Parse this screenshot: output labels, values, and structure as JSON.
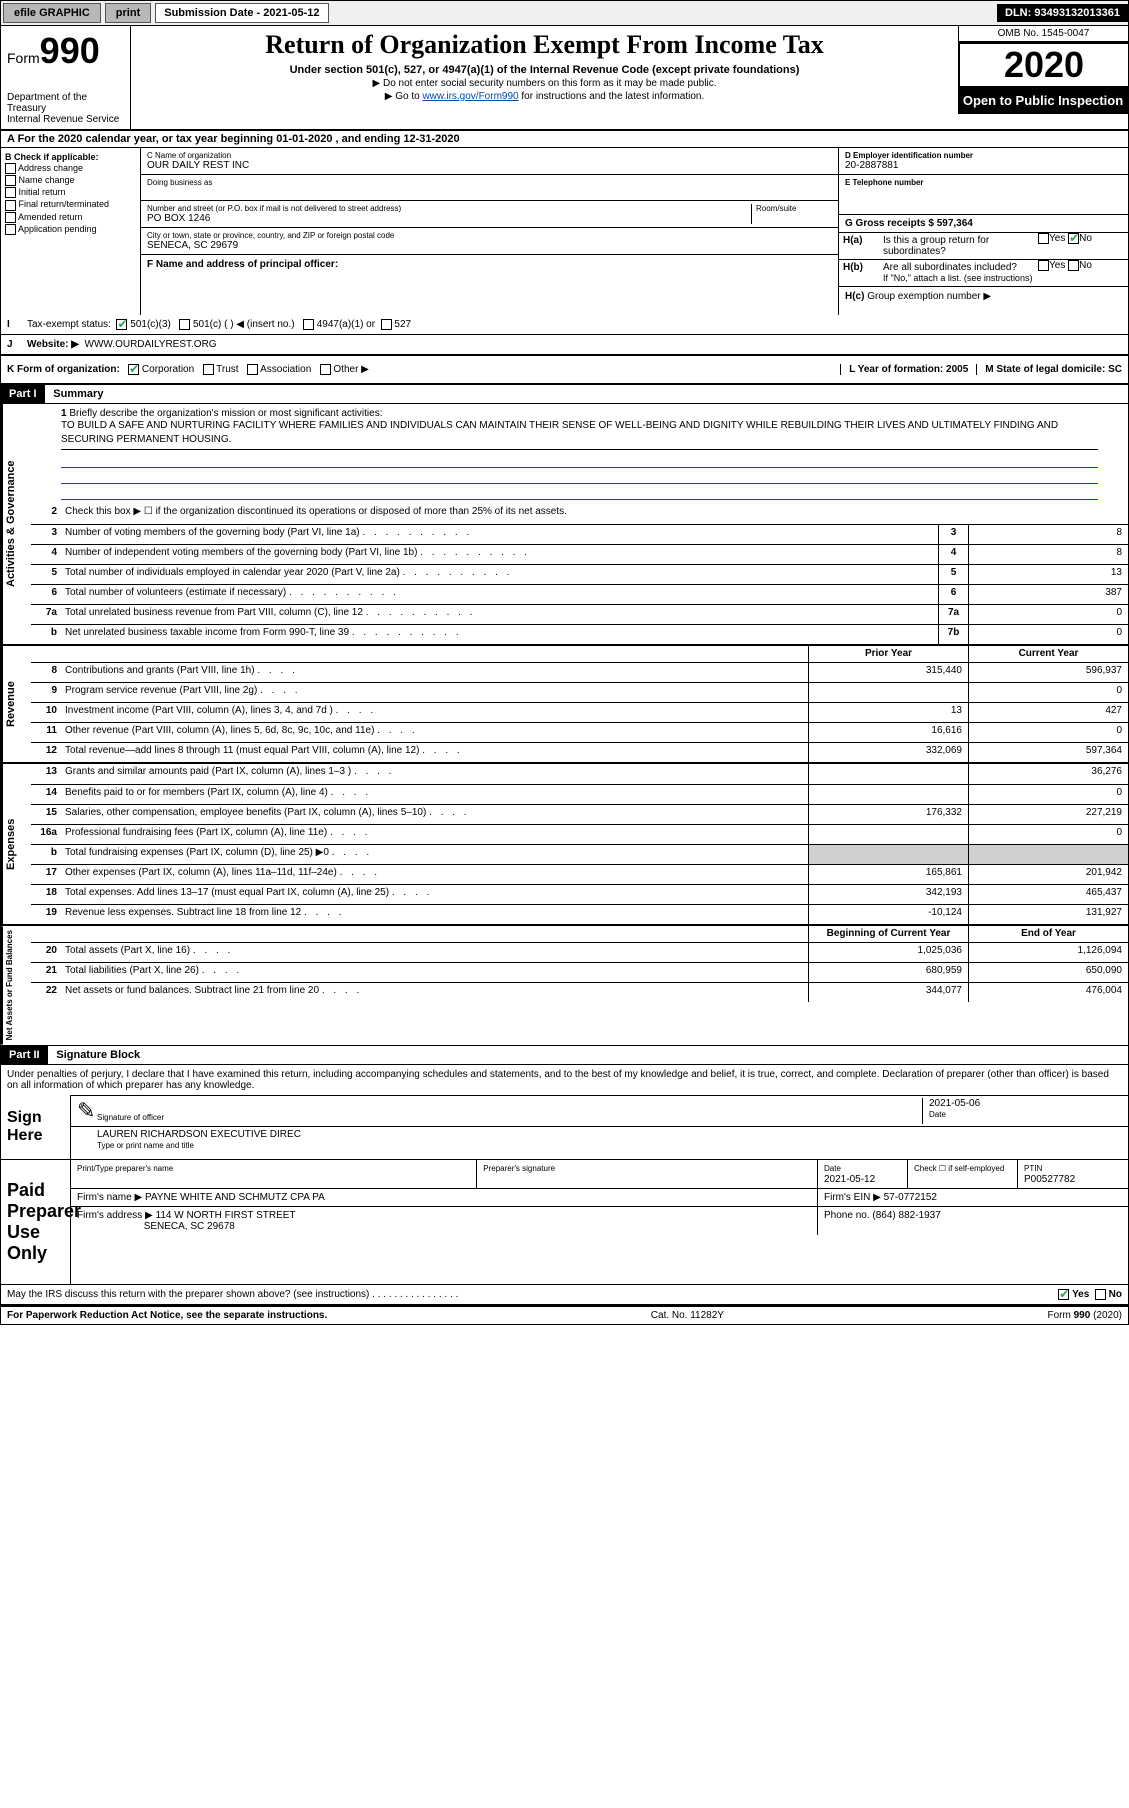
{
  "topbar": {
    "efile_label": "efile GRAPHIC",
    "print_label": "print",
    "submission_label": "Submission Date - 2021-05-12",
    "dln_label": "DLN: 93493132013361"
  },
  "header": {
    "form_prefix": "Form",
    "form_number": "990",
    "dept1": "Department of the Treasury",
    "dept2": "Internal Revenue Service",
    "title": "Return of Organization Exempt From Income Tax",
    "subtitle": "Under section 501(c), 527, or 4947(a)(1) of the Internal Revenue Code (except private foundations)",
    "instr1": "▶ Do not enter social security numbers on this form as it may be made public.",
    "instr2_prefix": "▶ Go to ",
    "instr2_link": "www.irs.gov/Form990",
    "instr2_suffix": " for instructions and the latest information.",
    "omb": "OMB No. 1545-0047",
    "year": "2020",
    "open": "Open to Public Inspection"
  },
  "period": "A For the 2020 calendar year, or tax year beginning 01-01-2020     , and ending 12-31-2020",
  "section_b": {
    "label": "B Check if applicable:",
    "opts": [
      "Address change",
      "Name change",
      "Initial return",
      "Final return/terminated",
      "Amended return",
      "Application pending"
    ]
  },
  "section_c": {
    "name_label": "C Name of organization",
    "name": "OUR DAILY REST INC",
    "dba_label": "Doing business as",
    "addr_label": "Number and street (or P.O. box if mail is not delivered to street address)",
    "room_label": "Room/suite",
    "addr": "PO BOX 1246",
    "city_label": "City or town, state or province, country, and ZIP or foreign postal code",
    "city": "SENECA, SC  29679",
    "f_label": "F Name and address of principal officer:"
  },
  "section_d": {
    "label": "D Employer identification number",
    "ein": "20-2887881",
    "e_label": "E Telephone number",
    "g_label": "G Gross receipts $ 597,364"
  },
  "section_h": {
    "a_label": "H(a)",
    "a_text": "Is this a group return for subordinates?",
    "b_label": "H(b)",
    "b_text": "Are all subordinates included?",
    "b_note": "If \"No,\" attach a list. (see instructions)",
    "c_label": "H(c)",
    "c_text": "Group exemption number ▶",
    "yes": "Yes",
    "no": "No"
  },
  "tax_exempt": {
    "i_label": "I",
    "label": "Tax-exempt status:",
    "opt1": "501(c)(3)",
    "opt2": "501(c) (    ) ◀ (insert no.)",
    "opt3": "4947(a)(1) or",
    "opt4": "527"
  },
  "website": {
    "j_label": "J",
    "label": "Website: ▶",
    "value": "WWW.OURDAILYREST.ORG"
  },
  "k_row": {
    "label": "K Form of organization:",
    "corp": "Corporation",
    "trust": "Trust",
    "assoc": "Association",
    "other": "Other ▶",
    "l_label": "L Year of formation: 2005",
    "m_label": "M State of legal domicile: SC"
  },
  "part1": {
    "header": "Part I",
    "title": "Summary",
    "line1_label": "1",
    "line1_text": "Briefly describe the organization's mission or most significant activities:",
    "mission": "TO BUILD A SAFE AND NURTURING FACILITY WHERE FAMILIES AND INDIVIDUALS CAN MAINTAIN THEIR SENSE OF WELL-BEING AND DIGNITY WHILE REBUILDING THEIR LIVES AND ULTIMATELY FINDING AND SECURING PERMANENT HOUSING.",
    "line2": "Check this box ▶ ☐ if the organization discontinued its operations or disposed of more than 25% of its net assets.",
    "side_gov": "Activities & Governance",
    "side_rev": "Revenue",
    "side_exp": "Expenses",
    "side_net": "Net Assets or Fund Balances",
    "lines_gov": [
      {
        "n": "3",
        "t": "Number of voting members of the governing body (Part VI, line 1a)",
        "b": "3",
        "v": "8"
      },
      {
        "n": "4",
        "t": "Number of independent voting members of the governing body (Part VI, line 1b)",
        "b": "4",
        "v": "8"
      },
      {
        "n": "5",
        "t": "Total number of individuals employed in calendar year 2020 (Part V, line 2a)",
        "b": "5",
        "v": "13"
      },
      {
        "n": "6",
        "t": "Total number of volunteers (estimate if necessary)",
        "b": "6",
        "v": "387"
      },
      {
        "n": "7a",
        "t": "Total unrelated business revenue from Part VIII, column (C), line 12",
        "b": "7a",
        "v": "0"
      },
      {
        "n": "b",
        "t": "Net unrelated business taxable income from Form 990-T, line 39",
        "b": "7b",
        "v": "0"
      }
    ],
    "col_prior": "Prior Year",
    "col_current": "Current Year",
    "lines_rev": [
      {
        "n": "8",
        "t": "Contributions and grants (Part VIII, line 1h)",
        "p": "315,440",
        "c": "596,937"
      },
      {
        "n": "9",
        "t": "Program service revenue (Part VIII, line 2g)",
        "p": "",
        "c": "0"
      },
      {
        "n": "10",
        "t": "Investment income (Part VIII, column (A), lines 3, 4, and 7d )",
        "p": "13",
        "c": "427"
      },
      {
        "n": "11",
        "t": "Other revenue (Part VIII, column (A), lines 5, 6d, 8c, 9c, 10c, and 11e)",
        "p": "16,616",
        "c": "0"
      },
      {
        "n": "12",
        "t": "Total revenue—add lines 8 through 11 (must equal Part VIII, column (A), line 12)",
        "p": "332,069",
        "c": "597,364"
      }
    ],
    "lines_exp": [
      {
        "n": "13",
        "t": "Grants and similar amounts paid (Part IX, column (A), lines 1–3 )",
        "p": "",
        "c": "36,276"
      },
      {
        "n": "14",
        "t": "Benefits paid to or for members (Part IX, column (A), line 4)",
        "p": "",
        "c": "0"
      },
      {
        "n": "15",
        "t": "Salaries, other compensation, employee benefits (Part IX, column (A), lines 5–10)",
        "p": "176,332",
        "c": "227,219"
      },
      {
        "n": "16a",
        "t": "Professional fundraising fees (Part IX, column (A), line 11e)",
        "p": "",
        "c": "0"
      },
      {
        "n": "b",
        "t": "Total fundraising expenses (Part IX, column (D), line 25) ▶0",
        "p": "GRAY",
        "c": "GRAY"
      },
      {
        "n": "17",
        "t": "Other expenses (Part IX, column (A), lines 11a–11d, 11f–24e)",
        "p": "165,861",
        "c": "201,942"
      },
      {
        "n": "18",
        "t": "Total expenses. Add lines 13–17 (must equal Part IX, column (A), line 25)",
        "p": "342,193",
        "c": "465,437"
      },
      {
        "n": "19",
        "t": "Revenue less expenses. Subtract line 18 from line 12",
        "p": "-10,124",
        "c": "131,927"
      }
    ],
    "col_begin": "Beginning of Current Year",
    "col_end": "End of Year",
    "lines_net": [
      {
        "n": "20",
        "t": "Total assets (Part X, line 16)",
        "p": "1,025,036",
        "c": "1,126,094"
      },
      {
        "n": "21",
        "t": "Total liabilities (Part X, line 26)",
        "p": "680,959",
        "c": "650,090"
      },
      {
        "n": "22",
        "t": "Net assets or fund balances. Subtract line 21 from line 20",
        "p": "344,077",
        "c": "476,004"
      }
    ]
  },
  "part2": {
    "header": "Part II",
    "title": "Signature Block",
    "jurat": "Under penalties of perjury, I declare that I have examined this return, including accompanying schedules and statements, and to the best of my knowledge and belief, it is true, correct, and complete. Declaration of preparer (other than officer) is based on all information of which preparer has any knowledge.",
    "sign_here": "Sign Here",
    "sig_officer": "Signature of officer",
    "sig_date": "2021-05-06",
    "date_label": "Date",
    "name_title": "LAUREN RICHARDSON  EXECUTIVE DIREC",
    "type_label": "Type or print name and title",
    "paid_label": "Paid Preparer Use Only",
    "prep_name_label": "Print/Type preparer's name",
    "prep_sig_label": "Preparer's signature",
    "prep_date_label": "Date",
    "prep_date": "2021-05-12",
    "check_self": "Check ☐ if self-employed",
    "ptin_label": "PTIN",
    "ptin": "P00527782",
    "firm_name_label": "Firm's name      ▶",
    "firm_name": "PAYNE WHITE AND SCHMUTZ CPA PA",
    "firm_ein_label": "Firm's EIN ▶",
    "firm_ein": "57-0772152",
    "firm_addr_label": "Firm's address ▶",
    "firm_addr1": "114 W NORTH FIRST STREET",
    "firm_addr2": "SENECA, SC  29678",
    "phone_label": "Phone no.",
    "phone": "(864) 882-1937",
    "discuss": "May the IRS discuss this return with the preparer shown above? (see instructions)",
    "footer1": "For Paperwork Reduction Act Notice, see the separate instructions.",
    "footer2": "Cat. No. 11282Y",
    "footer3": "Form 990 (2020)"
  }
}
